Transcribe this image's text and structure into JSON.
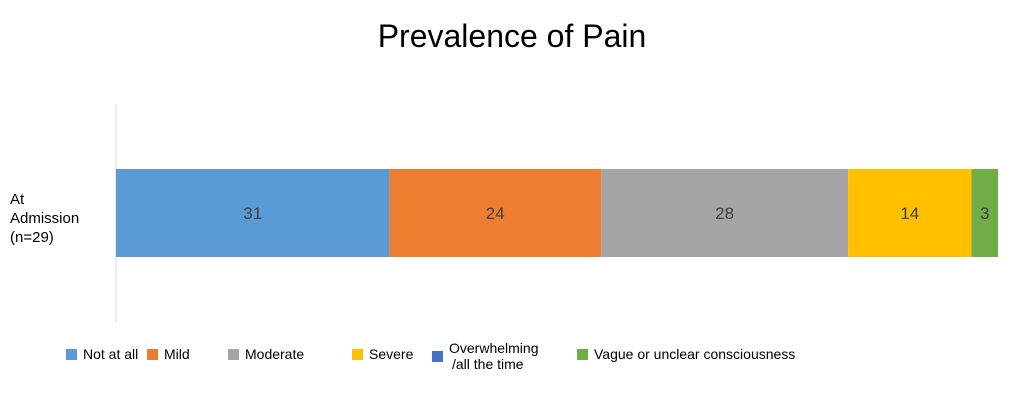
{
  "chart_data": {
    "type": "bar",
    "orientation": "horizontal",
    "stacked": true,
    "title": "Prevalence of Pain",
    "categories": [
      [
        "At",
        "Admission",
        "(n=29)"
      ]
    ],
    "series": [
      {
        "name": "Not at all",
        "values": [
          31
        ],
        "color": "#5B9BD5"
      },
      {
        "name": "Mild",
        "values": [
          24
        ],
        "color": "#ED7D31"
      },
      {
        "name": "Moderate",
        "values": [
          28
        ],
        "color": "#A5A5A5"
      },
      {
        "name": "Severe",
        "values": [
          14
        ],
        "color": "#FFC000"
      },
      {
        "name": "Overwhelming /all the time",
        "label_lines": [
          "Overwhelming",
          "/all the time"
        ],
        "values": [
          0
        ],
        "color": "#4472C4"
      },
      {
        "name": "Vague or unclear consciousness",
        "values": [
          3
        ],
        "color": "#70AD47"
      }
    ],
    "xlim": [
      0,
      100
    ],
    "grid": false,
    "legend_position": "bottom"
  }
}
